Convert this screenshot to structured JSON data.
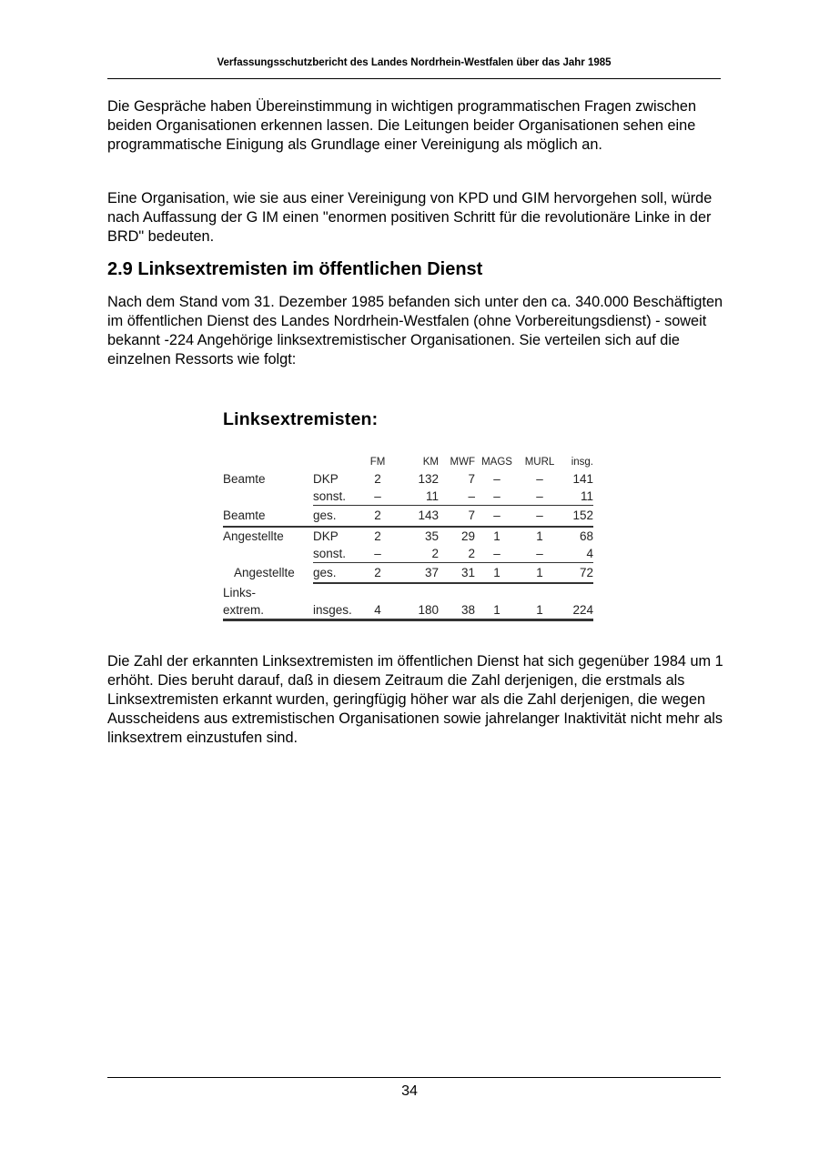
{
  "header": "Verfassungsschutzbericht des Landes Nordrhein-Westfalen über das Jahr 1985",
  "paragraphs": [
    "Die Gespräche haben Übereinstimmung in wichtigen programmatischen Fragen zwischen beiden Organisationen erkennen lassen. Die Leitungen beider Organisationen sehen eine programmatische Einigung als Grundlage einer Vereinigung als möglich an.",
    "Eine Organisation, wie sie aus einer Vereinigung von KPD und GIM hervorgehen soll, würde nach Auffassung der G IM einen \"enormen positiven Schritt für die revolutionäre Linke in der BRD\" bedeuten.",
    "Nach dem Stand vom 31. Dezember 1985 befanden sich unter den ca. 340.000 Beschäftigten im öffentlichen Dienst des Landes Nordrhein-Westfalen (ohne Vorbereitungsdienst) - soweit bekannt -224 Angehörige linksextremistischer Organisationen. Sie verteilen sich auf die einzelnen Ressorts wie folgt:",
    "Die Zahl der erkannten Linksextremisten im öffentlichen Dienst hat sich gegenüber 1984 um 1 erhöht. Dies beruht darauf, daß in diesem Zeitraum die Zahl derjenigen, die erstmals als Linksextremisten erkannt wurden, geringfügig höher war als die Zahl derjenigen, die wegen Ausscheidens aus extremistischen Organisationen sowie jahrelanger Inaktivität nicht mehr als linksextrem einzustufen sind."
  ],
  "section_heading": "2.9 Linksextremisten im öffentlichen Dienst",
  "table": {
    "title": "Linksextremisten:",
    "columns": [
      "FM",
      "KM",
      "MWF",
      "MAGS",
      "MURL",
      "insg."
    ],
    "rows": [
      {
        "group": "Beamte",
        "sub": "DKP",
        "values": [
          "2",
          "132",
          "7",
          "–",
          "–",
          "141"
        ]
      },
      {
        "group": "",
        "sub": "sonst.",
        "values": [
          "–",
          "11",
          "–",
          "–",
          "–",
          "11"
        ]
      },
      {
        "group": "Beamte",
        "sub": "ges.",
        "values": [
          "2",
          "143",
          "7",
          "–",
          "–",
          "152"
        ]
      },
      {
        "group": "Angestellte",
        "sub": "DKP",
        "values": [
          "2",
          "35",
          "29",
          "1",
          "1",
          "68"
        ]
      },
      {
        "group": "",
        "sub": "sonst.",
        "values": [
          "–",
          "2",
          "2",
          "–",
          "–",
          "4"
        ]
      },
      {
        "group": "Angestellte",
        "sub": "ges.",
        "values": [
          "2",
          "37",
          "31",
          "1",
          "1",
          "72"
        ]
      },
      {
        "group": "Links-",
        "sub": "",
        "values": [
          "",
          "",
          "",
          "",
          "",
          ""
        ]
      },
      {
        "group": "extrem.",
        "sub": "insges.",
        "values": [
          "4",
          "180",
          "38",
          "1",
          "1",
          "224"
        ]
      }
    ]
  },
  "page_number": "34"
}
